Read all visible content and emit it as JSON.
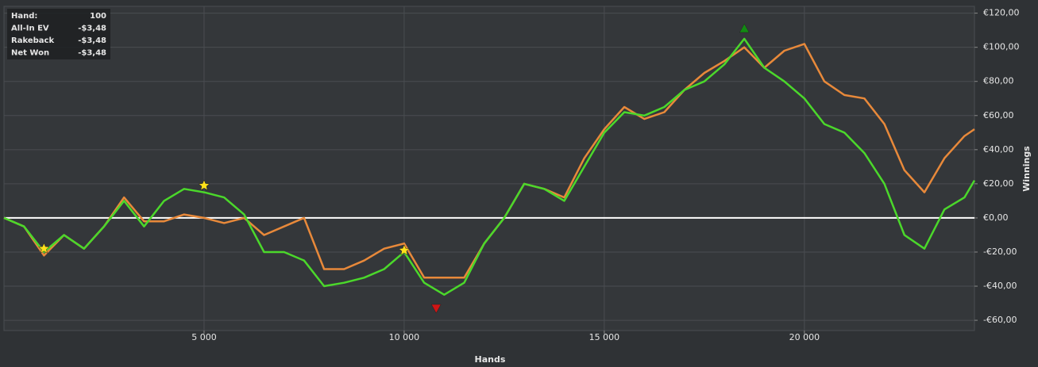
{
  "chart_data": {
    "type": "line",
    "x_label": "Hands",
    "y_label": "Winnings",
    "xlim": [
      0,
      24250
    ],
    "ylim": [
      -66,
      124
    ],
    "xticks": [
      {
        "value": 5000,
        "label": "5 000"
      },
      {
        "value": 10000,
        "label": "10 000"
      },
      {
        "value": 15000,
        "label": "15 000"
      },
      {
        "value": 20000,
        "label": "20 000"
      }
    ],
    "yticks": [
      {
        "value": -60,
        "label": "-€60,00"
      },
      {
        "value": -40,
        "label": "-€40,00"
      },
      {
        "value": -20,
        "label": "-€20,00"
      },
      {
        "value": 0,
        "label": "€0,00"
      },
      {
        "value": 20,
        "label": "€20,00"
      },
      {
        "value": 40,
        "label": "€40,00"
      },
      {
        "value": 60,
        "label": "€60,00"
      },
      {
        "value": 80,
        "label": "€80,00"
      },
      {
        "value": 100,
        "label": "€100,00"
      },
      {
        "value": 120,
        "label": "€120,00"
      }
    ],
    "grid": true,
    "zero_line_color": "#ffffff",
    "x": [
      0,
      500,
      1000,
      1500,
      2000,
      2500,
      3000,
      3500,
      4000,
      4500,
      5000,
      5500,
      6000,
      6500,
      7000,
      7500,
      8000,
      8500,
      9000,
      9500,
      10000,
      10500,
      11000,
      11500,
      12000,
      12500,
      13000,
      13500,
      14000,
      14500,
      15000,
      15500,
      16000,
      16500,
      17000,
      17500,
      18000,
      18500,
      19000,
      19500,
      20000,
      20500,
      21000,
      21500,
      22000,
      22500,
      23000,
      23500,
      24000,
      24250
    ],
    "series": [
      {
        "color": "#e8893a",
        "values": [
          0,
          -5,
          -22,
          -10,
          -18,
          -5,
          12,
          -2,
          -2,
          2,
          0,
          -3,
          0,
          -10,
          -5,
          0,
          -30,
          -30,
          -25,
          -18,
          -15,
          -35,
          -35,
          -35,
          -15,
          0,
          20,
          17,
          12,
          35,
          52,
          65,
          58,
          62,
          75,
          85,
          92,
          100,
          88,
          98,
          102,
          80,
          72,
          70,
          55,
          28,
          15,
          35,
          48,
          52
        ]
      },
      {
        "color": "#4bd82b",
        "values": [
          0,
          -5,
          -20,
          -10,
          -18,
          -5,
          10,
          -5,
          10,
          17,
          15,
          12,
          2,
          -20,
          -20,
          -25,
          -40,
          -38,
          -35,
          -30,
          -20,
          -38,
          -45,
          -38,
          -15,
          0,
          20,
          17,
          10,
          30,
          50,
          62,
          60,
          65,
          75,
          80,
          90,
          105,
          88,
          80,
          70,
          55,
          50,
          38,
          20,
          -10,
          -18,
          5,
          12,
          22
        ]
      }
    ],
    "markers": [
      {
        "shape": "star",
        "color": "#ffe11a",
        "x": 1000,
        "y": -18
      },
      {
        "shape": "star",
        "color": "#ffe11a",
        "x": 5000,
        "y": 19
      },
      {
        "shape": "star",
        "color": "#ffe11a",
        "x": 10000,
        "y": -19
      },
      {
        "shape": "triangle-up",
        "color": "#138a13",
        "x": 18500,
        "y": 111
      },
      {
        "shape": "triangle-down",
        "color": "#d01515",
        "x": 10800,
        "y": -53
      }
    ]
  },
  "info_box": {
    "rows": [
      [
        "Hand:",
        "100"
      ],
      [
        "All-In EV",
        "-$3,48"
      ],
      [
        "Rakeback",
        "-$3,48"
      ],
      [
        "Net Won",
        "-$3,48"
      ]
    ]
  }
}
